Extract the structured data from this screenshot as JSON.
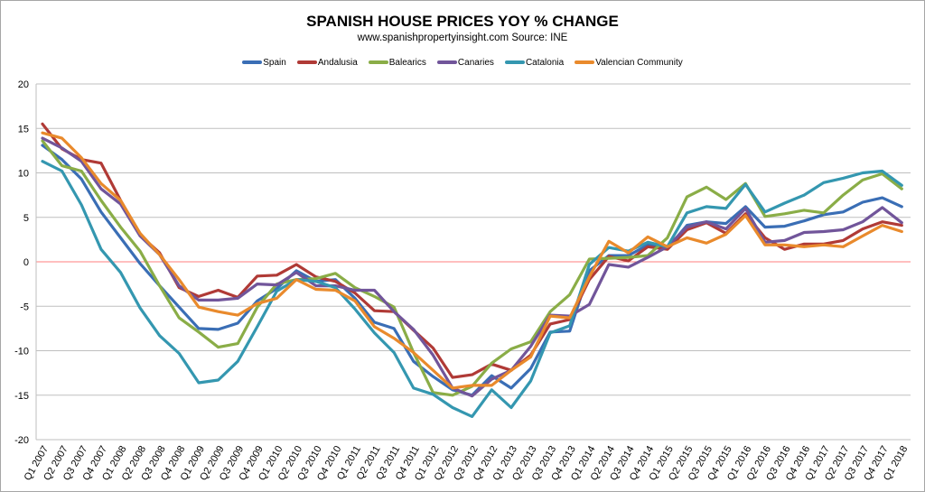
{
  "chart_data": {
    "type": "line",
    "title": "SPANISH HOUSE PRICES YOY % CHANGE",
    "subtitle": "www.spanishpropertyinsight.com Source: INE",
    "xlabel": "",
    "ylabel": "",
    "ylim": [
      -20,
      20
    ],
    "yticks": [
      20,
      15,
      10,
      5,
      0,
      -5,
      -10,
      -15,
      -20
    ],
    "grid": true,
    "legend": "top",
    "zero_line_color": "#ff7f7f",
    "categories": [
      "Q1 2007",
      "Q2 2007",
      "Q3 2007",
      "Q4 2007",
      "Q1 2008",
      "Q2 2008",
      "Q3 2008",
      "Q4 2008",
      "Q1 2009",
      "Q2 2009",
      "Q3 2009",
      "Q4 2009",
      "Q1 2010",
      "Q2 2010",
      "Q3 2010",
      "Q4 2010",
      "Q1 2011",
      "Q2 2011",
      "Q3 2011",
      "Q4 2011",
      "Q1 2012",
      "Q2 2012",
      "Q3 2012",
      "Q4 2012",
      "Q1 2013",
      "Q2 2013",
      "Q3 2013",
      "Q4 2013",
      "Q1 2014",
      "Q2 2014",
      "Q3 2014",
      "Q4 2014",
      "Q1 2015",
      "Q2 2015",
      "Q3 2015",
      "Q4 2015",
      "Q1 2016",
      "Q2 2016",
      "Q3 2016",
      "Q4 2016",
      "Q1 2017",
      "Q2 2017",
      "Q3 2017",
      "Q4 2017",
      "Q1 2018"
    ],
    "series": [
      {
        "name": "Spain",
        "color": "#3a6eb5",
        "values": [
          13.1,
          11.5,
          9.3,
          5.6,
          2.7,
          -0.2,
          -2.7,
          -5.1,
          -7.5,
          -7.6,
          -6.9,
          -4.4,
          -3.0,
          -1.0,
          -2.2,
          -2.0,
          -4.1,
          -6.8,
          -7.5,
          -11.2,
          -12.9,
          -14.4,
          -15.0,
          -12.8,
          -14.2,
          -12.0,
          -7.9,
          -7.8,
          -1.0,
          0.7,
          0.7,
          1.9,
          1.5,
          4.1,
          4.5,
          4.3,
          6.2,
          3.9,
          4.0,
          4.6,
          5.3,
          5.6,
          6.7,
          7.2,
          6.2
        ]
      },
      {
        "name": "Andalusia",
        "color": "#b03a36",
        "values": [
          15.5,
          12.7,
          11.5,
          11.1,
          6.9,
          3.0,
          1.0,
          -2.9,
          -3.9,
          -3.2,
          -4.0,
          -1.6,
          -1.5,
          -0.3,
          -1.7,
          -2.2,
          -3.5,
          -5.5,
          -5.6,
          -7.7,
          -9.7,
          -13.0,
          -12.7,
          -11.5,
          -12.2,
          -10.5,
          -7.0,
          -6.5,
          -2.0,
          0.6,
          0.1,
          1.7,
          1.4,
          3.6,
          4.4,
          3.2,
          5.4,
          2.7,
          1.4,
          2.0,
          2.0,
          2.4,
          3.7,
          4.5,
          4.1
        ]
      },
      {
        "name": "Balearics",
        "color": "#8aad47",
        "values": [
          13.6,
          10.8,
          10.2,
          6.9,
          3.9,
          1.2,
          -2.7,
          -6.3,
          -7.9,
          -9.6,
          -9.2,
          -5.1,
          -2.5,
          -2.0,
          -1.9,
          -1.3,
          -2.9,
          -3.9,
          -5.1,
          -10.2,
          -14.7,
          -15.0,
          -14.0,
          -11.4,
          -9.8,
          -9.0,
          -5.6,
          -3.7,
          0.3,
          0.4,
          0.5,
          0.7,
          2.7,
          7.3,
          8.4,
          7.0,
          8.8,
          5.1,
          5.4,
          5.8,
          5.5,
          7.5,
          9.2,
          9.9,
          8.2
        ]
      },
      {
        "name": "Canaries",
        "color": "#71559a",
        "values": [
          13.9,
          12.8,
          11.3,
          8.2,
          6.5,
          2.9,
          0.8,
          -2.7,
          -4.3,
          -4.3,
          -4.1,
          -2.5,
          -2.6,
          -1.2,
          -2.7,
          -2.7,
          -3.2,
          -3.2,
          -5.6,
          -7.6,
          -10.5,
          -14.2,
          -15.1,
          -13.2,
          -12.2,
          -9.5,
          -6.0,
          -6.1,
          -4.8,
          -0.3,
          -0.6,
          0.5,
          1.7,
          3.9,
          4.5,
          3.7,
          6.0,
          2.2,
          2.4,
          3.3,
          3.4,
          3.6,
          4.5,
          6.1,
          4.4
        ]
      },
      {
        "name": "Catalonia",
        "color": "#3497b0",
        "values": [
          11.3,
          10.2,
          6.4,
          1.4,
          -1.2,
          -5.2,
          -8.3,
          -10.3,
          -13.6,
          -13.3,
          -11.2,
          -7.3,
          -3.3,
          -2.0,
          -2.2,
          -2.9,
          -5.3,
          -8.0,
          -10.2,
          -14.2,
          -14.9,
          -16.4,
          -17.4,
          -14.4,
          -16.4,
          -13.4,
          -8.0,
          -7.2,
          -0.3,
          1.6,
          1.2,
          2.2,
          1.7,
          5.5,
          6.2,
          6.0,
          8.7,
          5.6,
          6.6,
          7.5,
          8.9,
          9.4,
          10.0,
          10.2,
          8.6
        ]
      },
      {
        "name": "Valencian Community",
        "color": "#e98a2c",
        "values": [
          14.5,
          13.9,
          11.7,
          8.8,
          6.9,
          3.2,
          0.8,
          -2.0,
          -5.1,
          -5.6,
          -6.0,
          -4.7,
          -4.1,
          -2.0,
          -3.1,
          -3.2,
          -4.4,
          -7.3,
          -8.6,
          -10.2,
          -12.2,
          -14.2,
          -13.9,
          -13.9,
          -12.2,
          -10.7,
          -6.1,
          -6.3,
          -1.7,
          2.3,
          1.0,
          2.8,
          1.7,
          2.7,
          2.1,
          3.1,
          5.2,
          1.9,
          1.9,
          1.7,
          1.9,
          1.7,
          2.9,
          4.1,
          3.4
        ]
      }
    ]
  }
}
